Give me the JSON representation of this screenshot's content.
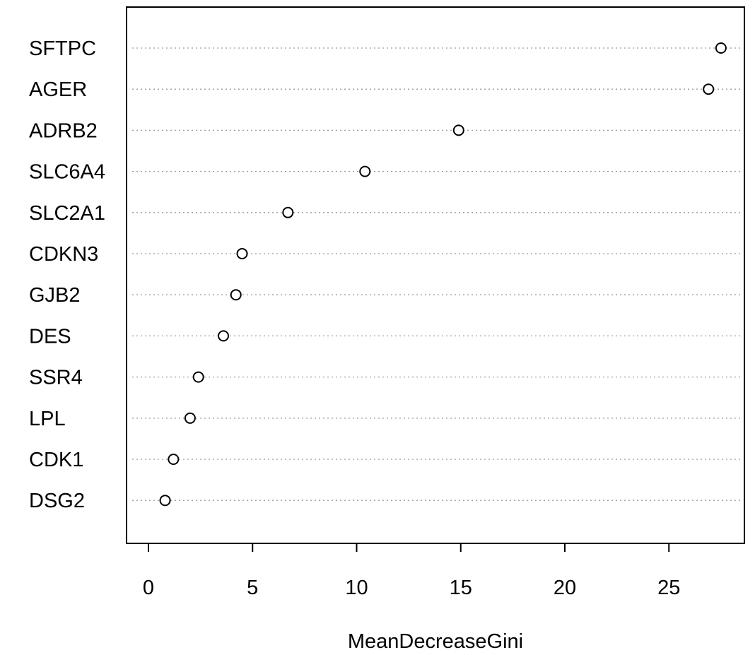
{
  "chart_data": {
    "type": "scatter",
    "title": "",
    "xlabel": "MeanDecreaseGini",
    "ylabel": "",
    "xlim": [
      0,
      28
    ],
    "x_ticks": [
      "0",
      "5",
      "10",
      "15",
      "20",
      "25"
    ],
    "grid": "dotted horizontal guide lines per category",
    "legend": "none",
    "categories": [
      "SFTPC",
      "AGER",
      "ADRB2",
      "SLC6A4",
      "SLC2A1",
      "CDKN3",
      "GJB2",
      "DES",
      "SSR4",
      "LPL",
      "CDK1",
      "DSG2"
    ],
    "values": [
      27.5,
      26.9,
      14.9,
      10.4,
      6.7,
      4.5,
      4.2,
      3.6,
      2.4,
      2.0,
      1.2,
      0.8
    ],
    "colors": {
      "axis": "#000000",
      "guide": "#9a9a9a",
      "marker_stroke": "#000000",
      "marker_fill": "#ffffff"
    }
  }
}
